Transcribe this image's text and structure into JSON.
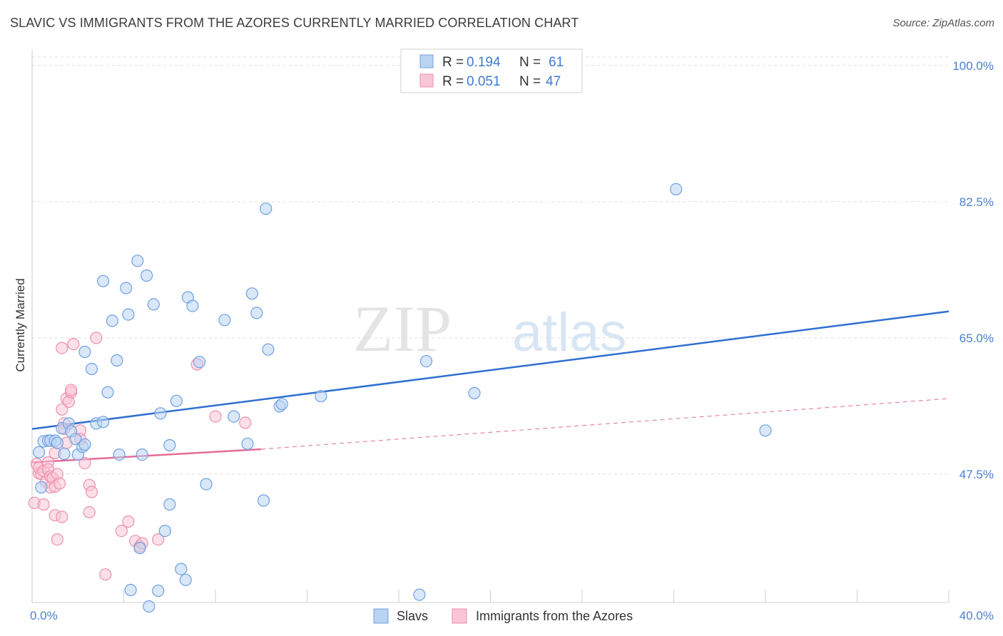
{
  "header": {
    "title": "SLAVIC VS IMMIGRANTS FROM THE AZORES CURRENTLY MARRIED CORRELATION CHART",
    "source": "Source: ZipAtlas.com"
  },
  "watermark": {
    "zip": "ZIP",
    "atlas": "atlas"
  },
  "chart_data": {
    "type": "scatter",
    "title": "SLAVIC VS IMMIGRANTS FROM THE AZORES CURRENTLY MARRIED CORRELATION CHART",
    "xlabel": "",
    "ylabel": "Currently Married",
    "xlim": [
      0,
      40
    ],
    "ylim": [
      31,
      102
    ],
    "x_ticks": [
      {
        "value": 0,
        "label": "0.0%"
      },
      {
        "value": 40,
        "label": "40.0%"
      }
    ],
    "y_ticks": [
      {
        "value": 100,
        "label": "100.0%"
      },
      {
        "value": 82.5,
        "label": "82.5%"
      },
      {
        "value": 65,
        "label": "65.0%"
      },
      {
        "value": 47.5,
        "label": "47.5%"
      }
    ],
    "legend": {
      "position": "top-center",
      "rows": [
        {
          "r_label": "R =",
          "r_value": "0.194",
          "n_label": "N =",
          "n_value": "61"
        },
        {
          "r_label": "R =",
          "r_value": "0.051",
          "n_label": "N =",
          "n_value": "47"
        }
      ]
    },
    "series": [
      {
        "name": "Slavs",
        "color": "#6fa0e0",
        "fill": "#b9d3f3",
        "trend_color": "#2f6fd0",
        "trend": {
          "x": [
            0,
            40
          ],
          "y": [
            53.3,
            68.4
          ]
        },
        "points": [
          [
            0.3,
            50.3
          ],
          [
            0.4,
            45.8
          ],
          [
            0.5,
            51.7
          ],
          [
            0.7,
            51.8
          ],
          [
            0.8,
            51.8
          ],
          [
            1.0,
            51.8
          ],
          [
            1.1,
            51.5
          ],
          [
            1.3,
            53.4
          ],
          [
            1.4,
            50.1
          ],
          [
            1.6,
            54.0
          ],
          [
            1.7,
            53.0
          ],
          [
            1.9,
            52.0
          ],
          [
            2.0,
            50.0
          ],
          [
            2.2,
            51.0
          ],
          [
            2.3,
            51.3
          ],
          [
            2.3,
            63.2
          ],
          [
            2.6,
            61.0
          ],
          [
            2.8,
            54.0
          ],
          [
            3.1,
            54.2
          ],
          [
            3.1,
            72.3
          ],
          [
            3.3,
            58.0
          ],
          [
            3.5,
            67.2
          ],
          [
            3.7,
            62.1
          ],
          [
            3.8,
            50.0
          ],
          [
            4.1,
            71.4
          ],
          [
            4.2,
            68.0
          ],
          [
            4.6,
            74.9
          ],
          [
            4.7,
            38.0
          ],
          [
            4.8,
            50.0
          ],
          [
            5.0,
            73.0
          ],
          [
            5.1,
            30.5
          ],
          [
            5.3,
            69.3
          ],
          [
            5.5,
            32.5
          ],
          [
            5.6,
            55.3
          ],
          [
            5.8,
            40.2
          ],
          [
            6.0,
            43.6
          ],
          [
            6.0,
            51.2
          ],
          [
            6.3,
            56.9
          ],
          [
            6.5,
            35.3
          ],
          [
            6.7,
            33.9
          ],
          [
            6.8,
            70.2
          ],
          [
            7.0,
            69.1
          ],
          [
            7.3,
            61.9
          ],
          [
            7.6,
            46.2
          ],
          [
            8.4,
            67.3
          ],
          [
            8.8,
            54.9
          ],
          [
            9.4,
            51.4
          ],
          [
            9.6,
            70.7
          ],
          [
            9.8,
            68.2
          ],
          [
            10.1,
            44.1
          ],
          [
            10.2,
            81.6
          ],
          [
            10.3,
            63.5
          ],
          [
            10.8,
            56.2
          ],
          [
            10.9,
            56.5
          ],
          [
            12.6,
            57.5
          ],
          [
            16.9,
            32.0
          ],
          [
            17.2,
            62.0
          ],
          [
            19.3,
            57.9
          ],
          [
            28.1,
            84.1
          ],
          [
            32.0,
            53.1
          ],
          [
            4.3,
            32.6
          ]
        ]
      },
      {
        "name": "Immigrants from the Azores",
        "color": "#ee8fae",
        "fill": "#f8c6d6",
        "trend_color": "#e56b96",
        "trend": {
          "x": [
            0,
            10
          ],
          "y": [
            49.0,
            50.7
          ]
        },
        "trend_ext": {
          "x": [
            10,
            40
          ],
          "y": [
            50.7,
            57.2
          ]
        },
        "points": [
          [
            0.1,
            43.8
          ],
          [
            0.2,
            48.8
          ],
          [
            0.3,
            47.6
          ],
          [
            0.3,
            48.3
          ],
          [
            0.4,
            47.5
          ],
          [
            0.5,
            43.6
          ],
          [
            0.5,
            47.9
          ],
          [
            0.6,
            46.5
          ],
          [
            0.7,
            49.0
          ],
          [
            0.7,
            48.1
          ],
          [
            0.8,
            45.8
          ],
          [
            0.8,
            47.2
          ],
          [
            0.9,
            47.0
          ],
          [
            1.0,
            45.9
          ],
          [
            1.0,
            50.2
          ],
          [
            1.0,
            42.2
          ],
          [
            1.1,
            39.1
          ],
          [
            1.1,
            47.5
          ],
          [
            1.2,
            46.3
          ],
          [
            1.3,
            42.0
          ],
          [
            1.3,
            63.7
          ],
          [
            1.3,
            55.8
          ],
          [
            1.4,
            54.0
          ],
          [
            1.5,
            51.5
          ],
          [
            1.5,
            57.2
          ],
          [
            1.6,
            56.8
          ],
          [
            1.7,
            58.0
          ],
          [
            1.7,
            58.3
          ],
          [
            1.8,
            64.2
          ],
          [
            2.1,
            53.1
          ],
          [
            2.1,
            52.0
          ],
          [
            2.3,
            48.9
          ],
          [
            2.5,
            46.1
          ],
          [
            2.5,
            42.6
          ],
          [
            2.6,
            45.2
          ],
          [
            2.8,
            65.0
          ],
          [
            3.2,
            34.6
          ],
          [
            3.9,
            40.2
          ],
          [
            4.2,
            41.4
          ],
          [
            4.5,
            38.9
          ],
          [
            4.7,
            38.2
          ],
          [
            4.8,
            38.6
          ],
          [
            5.5,
            39.1
          ],
          [
            7.2,
            61.6
          ],
          [
            8.0,
            54.9
          ],
          [
            9.3,
            54.1
          ],
          [
            1.4,
            53.3
          ]
        ]
      }
    ]
  },
  "bottom_legend": [
    {
      "label": "Slavs"
    },
    {
      "label": "Immigrants from the Azores"
    }
  ]
}
